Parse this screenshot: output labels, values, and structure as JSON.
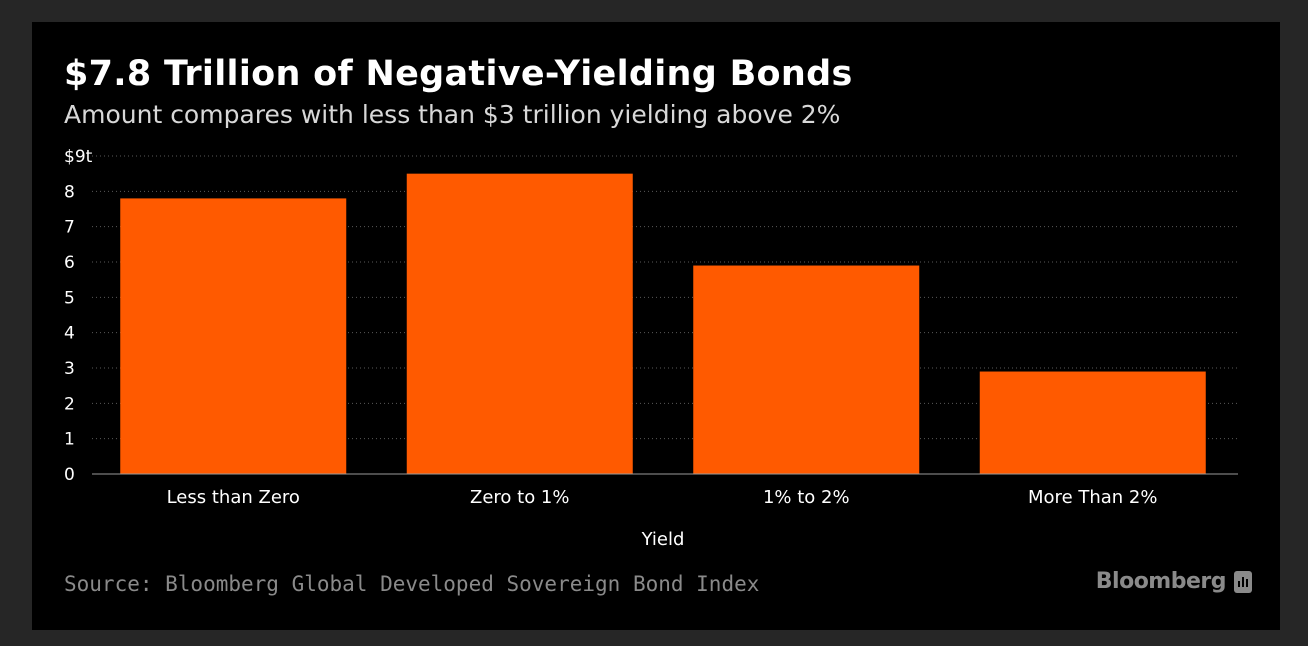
{
  "header": {
    "title": "$7.8 Trillion of Negative-Yielding Bonds",
    "subtitle": "Amount compares with less than $3 trillion yielding above 2%"
  },
  "footer": {
    "source": "Source: Bloomberg Global Developed Sovereign Bond Index",
    "brand": "Bloomberg",
    "brand_icon": "bloomberg-bars-icon"
  },
  "colors": {
    "background": "#000000",
    "bar": "#ff5a00",
    "grid": "#5a5a5a",
    "axis": "#9a9a9a",
    "text": "#ffffff"
  },
  "chart_data": {
    "type": "bar",
    "title": "$7.8 Trillion of Negative-Yielding Bonds",
    "subtitle": "Amount compares with less than $3 trillion yielding above 2%",
    "xlabel": "Yield",
    "ylabel": "",
    "categories": [
      "Less than Zero",
      "Zero to 1%",
      "1% to 2%",
      "More Than 2%"
    ],
    "values": [
      7.8,
      8.5,
      5.9,
      2.9
    ],
    "ylim": [
      0,
      9
    ],
    "yticks": [
      0,
      1,
      2,
      3,
      4,
      5,
      6,
      7,
      8,
      9
    ],
    "ytick_labels": [
      "0",
      "1",
      "2",
      "3",
      "4",
      "5",
      "6",
      "7",
      "8",
      "$9t"
    ],
    "grid": true,
    "legend": "none"
  }
}
